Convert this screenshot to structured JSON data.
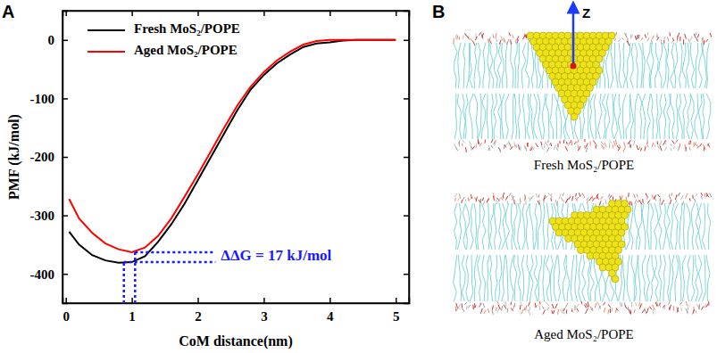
{
  "panel_labels": [
    "A",
    "B"
  ],
  "chart_data": {
    "type": "line",
    "xlabel": "CoM distance(nm)",
    "ylabel": "PMF (kJ/mol)",
    "x": [
      0.05,
      0.2,
      0.4,
      0.6,
      0.8,
      1.0,
      1.2,
      1.4,
      1.6,
      1.8,
      2.0,
      2.2,
      2.4,
      2.6,
      2.8,
      3.0,
      3.2,
      3.4,
      3.6,
      3.8,
      4.0,
      4.2,
      4.4,
      4.6,
      4.8,
      5.0
    ],
    "series": [
      {
        "name": "Fresh MoS₂/POPE",
        "color": "#000000",
        "values": [
          -328,
          -350,
          -368,
          -377,
          -381,
          -380,
          -370,
          -345,
          -315,
          -280,
          -240,
          -200,
          -160,
          -120,
          -85,
          -60,
          -40,
          -25,
          -12,
          -6,
          -4,
          -1,
          0,
          0,
          0,
          0
        ]
      },
      {
        "name": "Aged MoS₂/POPE",
        "color": "#ff0000",
        "values": [
          -272,
          -305,
          -330,
          -348,
          -358,
          -363,
          -355,
          -335,
          -305,
          -268,
          -230,
          -190,
          -150,
          -112,
          -80,
          -55,
          -35,
          -20,
          -8,
          -2,
          0,
          0,
          0,
          0,
          0,
          0
        ]
      }
    ],
    "xlim": [
      -0.05,
      5.2
    ],
    "xticks": [
      0,
      1,
      2,
      3,
      4,
      5
    ],
    "ylim": [
      -450,
      50
    ],
    "yticks": [
      -400,
      -300,
      -200,
      -100,
      0
    ],
    "legend": "upper left",
    "annotations": [
      {
        "text": "ΔΔG = 17 kJ/mol",
        "color": "#1a1aff",
        "line_style": "dotted",
        "points": [
          {
            "x": 0.88,
            "y": -380
          },
          {
            "x": 1.05,
            "y": -363
          }
        ]
      }
    ]
  },
  "panel_b": {
    "axis_label": "Z",
    "captions": [
      "Fresh MoS₂/POPE",
      "Aged MoS₂/POPE"
    ]
  }
}
